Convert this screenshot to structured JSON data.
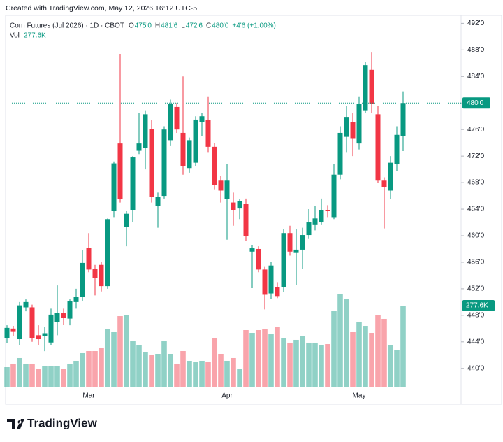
{
  "watermark": "Created with TradingView.com, May 12, 2026 16:12 UTC-5",
  "brand": "TradingView",
  "chart_data": {
    "type": "candlestick",
    "title": "Corn Futures (Jul 2026) · 1D · CBOT",
    "ohlc_header": [
      {
        "key": "O",
        "value": "475'0"
      },
      {
        "key": "H",
        "value": "481'6"
      },
      {
        "key": "L",
        "value": "472'6"
      },
      {
        "key": "C",
        "value": "480'0"
      }
    ],
    "change": "+4'6 (+1.00%)",
    "volume_title": "Vol",
    "volume_header": "277.6K",
    "last_price_label": "480'0",
    "volume_label": "277.6K",
    "up_color": "#089981",
    "down_color": "#f23645",
    "categories": [
      null,
      null,
      null,
      null,
      null,
      null,
      null,
      null,
      null,
      null,
      null,
      null,
      null,
      "Mar",
      null,
      null,
      null,
      null,
      null,
      null,
      null,
      null,
      null,
      null,
      null,
      null,
      null,
      null,
      null,
      null,
      null,
      null,
      null,
      null,
      null,
      "Apr",
      null,
      null,
      null,
      null,
      null,
      null,
      null,
      null,
      null,
      null,
      null,
      null,
      null,
      null,
      null,
      null,
      null,
      null,
      null,
      null,
      "May",
      null,
      null,
      null,
      null,
      null,
      null,
      null
    ],
    "open": [
      444.6,
      446.0,
      444.4,
      449.2,
      449.2,
      445.0,
      444.9,
      443.9,
      447.0,
      448.3,
      447.5,
      450.0,
      450.8,
      458.2,
      455.0,
      455.6,
      452.4,
      463.7,
      473.9,
      461.3,
      463.9,
      472.8,
      473.2,
      476.1,
      464.5,
      466.0,
      474.4,
      479.4,
      475.5,
      470.2,
      471.0,
      477.1,
      477.4,
      473.4,
      468.3,
      465.5,
      465.0,
      464.1,
      464.8,
      457.6,
      458.0,
      454.9,
      451.3,
      452.3,
      452.3,
      460.4,
      457.4,
      457.9,
      460.1,
      461.6,
      462.0,
      463.9,
      462.8,
      469.2,
      474.9,
      477.1,
      473.9,
      478.8,
      485.0,
      478.3,
      468.3,
      466.8,
      470.8,
      475.0
    ],
    "high": [
      446.5,
      446.4,
      450.0,
      450.4,
      449.6,
      446.5,
      446.2,
      449.0,
      452.5,
      449.0,
      450.4,
      452.0,
      457.8,
      460.4,
      455.6,
      456.0,
      462.6,
      471.2,
      487.4,
      463.8,
      472.0,
      478.5,
      478.8,
      477.5,
      466.5,
      476.5,
      480.5,
      480.0,
      484.0,
      474.8,
      478.0,
      478.5,
      481.0,
      474.0,
      469.0,
      470.8,
      466.5,
      465.5,
      465.6,
      458.6,
      458.4,
      455.3,
      456.0,
      453.0,
      461.0,
      461.5,
      461.0,
      461.2,
      464.0,
      464.5,
      465.6,
      464.6,
      470.8,
      476.5,
      479.5,
      478.5,
      481.0,
      486.2,
      487.6,
      479.5,
      468.8,
      472.0,
      476.5,
      481.75
    ],
    "low": [
      443.8,
      444.9,
      443.5,
      448.6,
      444.0,
      443.5,
      442.6,
      443.5,
      445.0,
      446.6,
      446.5,
      449.0,
      450.2,
      454.5,
      451.0,
      451.6,
      452.0,
      462.8,
      465.0,
      458.4,
      462.0,
      472.3,
      470.0,
      465.0,
      461.2,
      465.6,
      473.5,
      475.5,
      469.2,
      469.5,
      470.5,
      475.0,
      472.5,
      467.0,
      465.0,
      459.4,
      461.5,
      462.5,
      459.2,
      452.1,
      454.5,
      448.9,
      450.5,
      450.6,
      451.5,
      457.0,
      452.6,
      455.0,
      459.5,
      460.8,
      461.6,
      462.8,
      462.5,
      468.5,
      472.5,
      472.0,
      473.0,
      478.5,
      478.5,
      468.0,
      461.1,
      465.5,
      469.8,
      472.75
    ],
    "close": [
      446.1,
      445.6,
      449.5,
      450.0,
      444.6,
      444.4,
      445.3,
      448.1,
      448.4,
      447.6,
      450.1,
      450.8,
      455.9,
      454.9,
      453.6,
      452.4,
      462.5,
      470.9,
      465.5,
      463.3,
      471.8,
      473.9,
      478.3,
      465.8,
      465.8,
      476.0,
      479.9,
      476.0,
      470.5,
      474.4,
      477.5,
      478.0,
      473.4,
      467.6,
      466.8,
      468.3,
      463.9,
      465.2,
      459.9,
      458.1,
      454.9,
      451.1,
      455.5,
      450.9,
      460.4,
      457.6,
      457.9,
      460.1,
      462.0,
      462.6,
      463.9,
      463.7,
      469.2,
      475.5,
      477.8,
      474.6,
      479.9,
      485.7,
      479.9,
      468.3,
      467.3,
      471.0,
      475.2,
      480.0
    ],
    "volume": [
      68800,
      80700,
      99700,
      80700,
      80700,
      61700,
      71200,
      71200,
      71200,
      61700,
      80700,
      90200,
      116300,
      123400,
      123400,
      132900,
      197000,
      189800,
      242000,
      246800,
      156600,
      142400,
      118700,
      109200,
      113900,
      156600,
      113900,
      80700,
      123400,
      90200,
      85400,
      90200,
      87800,
      166100,
      113900,
      90200,
      99700,
      61700,
      194600,
      185100,
      194600,
      199300,
      180300,
      204100,
      166100,
      151900,
      161400,
      175600,
      151900,
      151900,
      142400,
      147100,
      261000,
      318000,
      299000,
      189800,
      223100,
      208800,
      185100,
      244400,
      232600,
      142400,
      128100,
      277600
    ],
    "ylim": [
      434.6,
      493.2
    ],
    "yticks": [
      {
        "value": 492,
        "label": "492'0"
      },
      {
        "value": 488,
        "label": "488'0"
      },
      {
        "value": 484,
        "label": "484'0"
      },
      {
        "value": 480,
        "label": "480'0"
      },
      {
        "value": 476,
        "label": "476'0"
      },
      {
        "value": 472,
        "label": "472'0"
      },
      {
        "value": 468,
        "label": "468'0"
      },
      {
        "value": 464,
        "label": "464'0"
      },
      {
        "value": 460,
        "label": "460'0"
      },
      {
        "value": 456,
        "label": "456'0"
      },
      {
        "value": 452,
        "label": "452'0"
      },
      {
        "value": 448,
        "label": "448'0"
      },
      {
        "value": 444,
        "label": "444'0"
      },
      {
        "value": 440,
        "label": "440'0"
      }
    ]
  }
}
